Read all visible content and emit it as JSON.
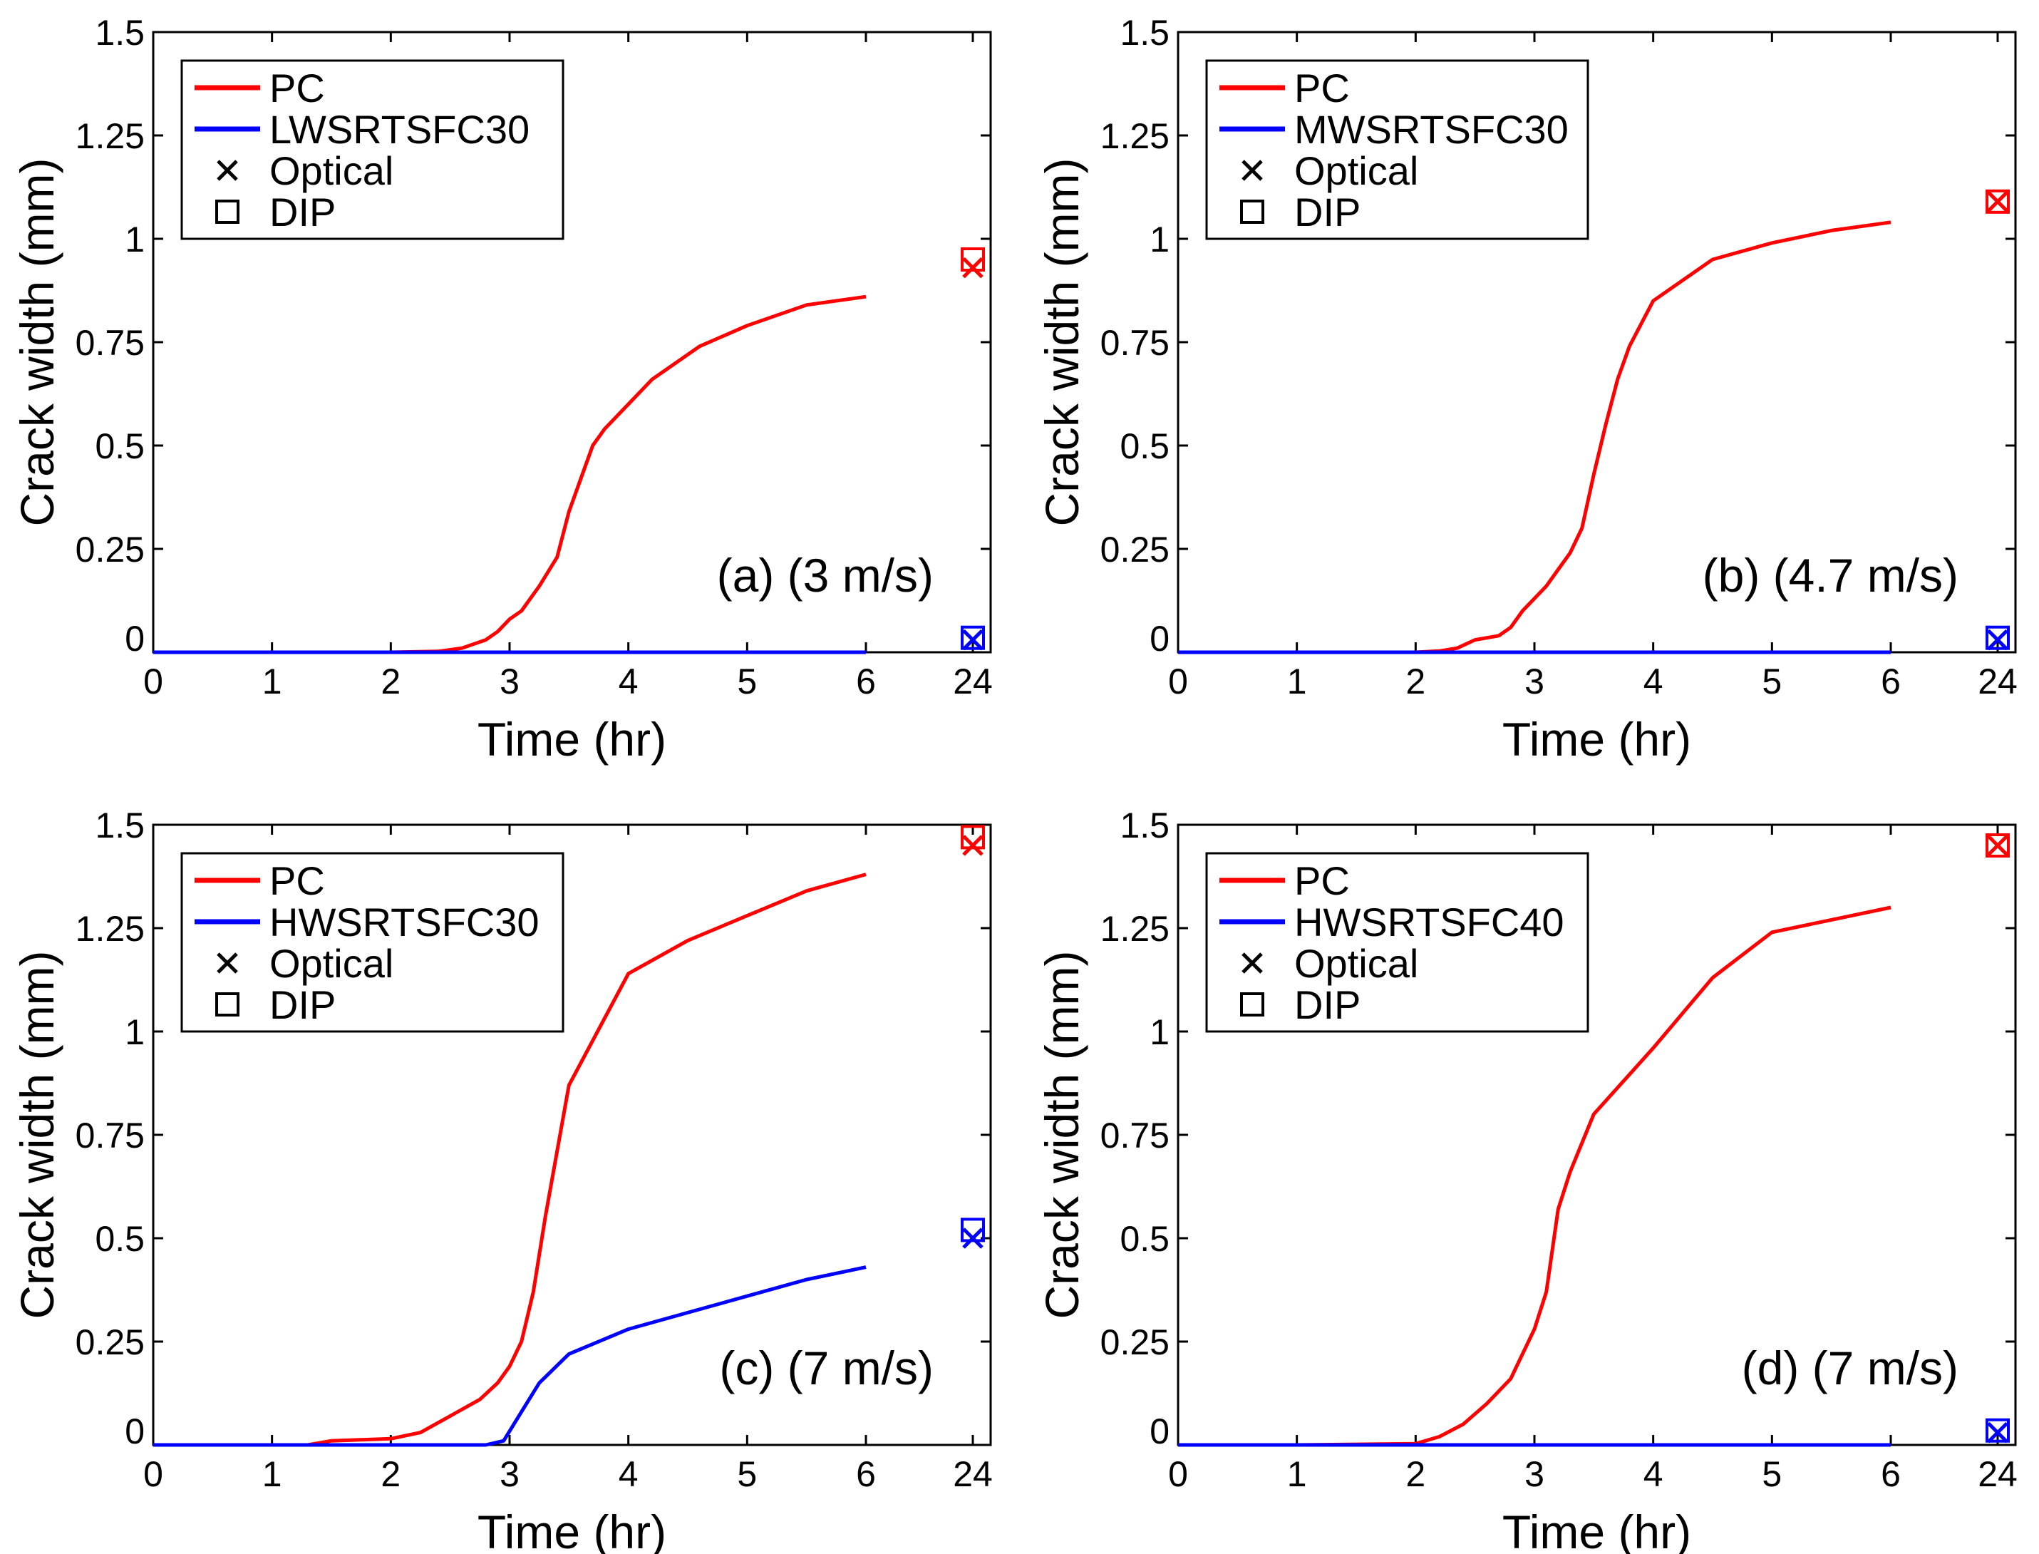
{
  "chart_data": [
    {
      "type": "line",
      "panel": "a",
      "annotation": "(a) (3 m/s)",
      "xlabel": "Time (hr)",
      "ylabel": "Crack width (mm)",
      "ylim": [
        0,
        1.5
      ],
      "x_ticks": [
        "0",
        "1",
        "2",
        "3",
        "4",
        "5",
        "6",
        "24"
      ],
      "y_ticks": [
        "0",
        "0.25",
        "0.5",
        "0.75",
        "1",
        "1.25",
        "1.5"
      ],
      "grid": false,
      "legend": {
        "position": "top-left",
        "entries": [
          {
            "label": "PC",
            "kind": "line",
            "color": "#ff0000"
          },
          {
            "label": "LWSRTSFC30",
            "kind": "line",
            "color": "#0000ff"
          },
          {
            "label": "Optical",
            "kind": "x-marker",
            "color": "#000000"
          },
          {
            "label": "DIP",
            "kind": "square-marker",
            "color": "#000000"
          }
        ]
      },
      "series": [
        {
          "name": "PC",
          "color": "#ff0000",
          "x": [
            0,
            1,
            2,
            2.4,
            2.6,
            2.8,
            2.9,
            3.0,
            3.1,
            3.25,
            3.4,
            3.5,
            3.6,
            3.7,
            3.8,
            4.0,
            4.2,
            4.6,
            5.0,
            5.5,
            6.0
          ],
          "y": [
            0,
            0,
            0,
            0.002,
            0.01,
            0.03,
            0.05,
            0.08,
            0.1,
            0.16,
            0.23,
            0.34,
            0.42,
            0.5,
            0.54,
            0.6,
            0.66,
            0.74,
            0.79,
            0.84,
            0.86
          ]
        },
        {
          "name": "LWSRTSFC30",
          "color": "#0000ff",
          "x": [
            0,
            6
          ],
          "y": [
            0,
            0
          ]
        }
      ],
      "markers_24h": [
        {
          "series": "PC",
          "color": "#ff0000",
          "optical": 0.93,
          "dip": 0.95
        },
        {
          "series": "LWSRTSFC30",
          "color": "#0000ff",
          "optical": 0.03,
          "dip": 0.035
        }
      ]
    },
    {
      "type": "line",
      "panel": "b",
      "annotation": "(b) (4.7 m/s)",
      "xlabel": "Time (hr)",
      "ylabel": "Crack width (mm)",
      "ylim": [
        0,
        1.5
      ],
      "x_ticks": [
        "0",
        "1",
        "2",
        "3",
        "4",
        "5",
        "6",
        "24"
      ],
      "y_ticks": [
        "0",
        "0.25",
        "0.5",
        "0.75",
        "1",
        "1.25",
        "1.5"
      ],
      "grid": false,
      "legend": {
        "position": "top-left",
        "entries": [
          {
            "label": "PC",
            "kind": "line",
            "color": "#ff0000"
          },
          {
            "label": "MWSRTSFC30",
            "kind": "line",
            "color": "#0000ff"
          },
          {
            "label": "Optical",
            "kind": "x-marker",
            "color": "#000000"
          },
          {
            "label": "DIP",
            "kind": "square-marker",
            "color": "#000000"
          }
        ]
      },
      "series": [
        {
          "name": "PC",
          "color": "#ff0000",
          "x": [
            0,
            1,
            2,
            2.2,
            2.35,
            2.5,
            2.7,
            2.8,
            2.9,
            3.0,
            3.1,
            3.2,
            3.3,
            3.4,
            3.5,
            3.6,
            3.7,
            3.8,
            4.0,
            4.5,
            5.0,
            5.5,
            6.0
          ],
          "y": [
            0,
            0,
            0,
            0.003,
            0.01,
            0.03,
            0.04,
            0.06,
            0.1,
            0.13,
            0.16,
            0.2,
            0.24,
            0.3,
            0.43,
            0.55,
            0.66,
            0.74,
            0.85,
            0.95,
            0.99,
            1.02,
            1.04
          ]
        },
        {
          "name": "MWSRTSFC30",
          "color": "#0000ff",
          "x": [
            0,
            6
          ],
          "y": [
            0,
            0
          ]
        }
      ],
      "markers_24h": [
        {
          "series": "PC",
          "color": "#ff0000",
          "optical": 1.09,
          "dip": 1.09
        },
        {
          "series": "MWSRTSFC30",
          "color": "#0000ff",
          "optical": 0.03,
          "dip": 0.035
        }
      ]
    },
    {
      "type": "line",
      "panel": "c",
      "annotation": "(c) (7 m/s)",
      "xlabel": "Time (hr)",
      "ylabel": "Crack width (mm)",
      "ylim": [
        0,
        1.5
      ],
      "x_ticks": [
        "0",
        "1",
        "2",
        "3",
        "4",
        "5",
        "6",
        "24"
      ],
      "y_ticks": [
        "0",
        "0.25",
        "0.5",
        "0.75",
        "1",
        "1.25",
        "1.5"
      ],
      "grid": false,
      "legend": {
        "position": "top-left",
        "entries": [
          {
            "label": "PC",
            "kind": "line",
            "color": "#ff0000"
          },
          {
            "label": "HWSRTSFC30",
            "kind": "line",
            "color": "#0000ff"
          },
          {
            "label": "Optical",
            "kind": "x-marker",
            "color": "#000000"
          },
          {
            "label": "DIP",
            "kind": "square-marker",
            "color": "#000000"
          }
        ]
      },
      "series": [
        {
          "name": "PC",
          "color": "#ff0000",
          "x": [
            0,
            1,
            1.3,
            1.5,
            2.0,
            2.25,
            2.5,
            2.75,
            2.9,
            3.0,
            3.1,
            3.2,
            3.3,
            3.5,
            4.0,
            4.5,
            5.0,
            5.5,
            6.0
          ],
          "y": [
            0,
            0,
            0,
            0.01,
            0.015,
            0.03,
            0.07,
            0.11,
            0.15,
            0.19,
            0.25,
            0.37,
            0.55,
            0.87,
            1.14,
            1.22,
            1.28,
            1.34,
            1.38
          ]
        },
        {
          "name": "HWSRTSFC30",
          "color": "#0000ff",
          "x": [
            0,
            2.8,
            2.95,
            3.1,
            3.25,
            3.5,
            4.0,
            4.5,
            5.0,
            5.5,
            6.0
          ],
          "y": [
            0,
            0,
            0.01,
            0.08,
            0.15,
            0.22,
            0.28,
            0.32,
            0.36,
            0.4,
            0.43
          ]
        }
      ],
      "markers_24h": [
        {
          "series": "PC",
          "color": "#ff0000",
          "optical": 1.45,
          "dip": 1.47
        },
        {
          "series": "HWSRTSFC30",
          "color": "#0000ff",
          "optical": 0.5,
          "dip": 0.52
        }
      ]
    },
    {
      "type": "line",
      "panel": "d",
      "annotation": "(d) (7 m/s)",
      "xlabel": "Time (hr)",
      "ylabel": "Crack width (mm)",
      "ylim": [
        0,
        1.5
      ],
      "x_ticks": [
        "0",
        "1",
        "2",
        "3",
        "4",
        "5",
        "6",
        "24"
      ],
      "y_ticks": [
        "0",
        "0.25",
        "0.5",
        "0.75",
        "1",
        "1.25",
        "1.5"
      ],
      "grid": false,
      "legend": {
        "position": "top-left",
        "entries": [
          {
            "label": "PC",
            "kind": "line",
            "color": "#ff0000"
          },
          {
            "label": "HWSRTSFC40",
            "kind": "line",
            "color": "#0000ff"
          },
          {
            "label": "Optical",
            "kind": "x-marker",
            "color": "#000000"
          },
          {
            "label": "DIP",
            "kind": "square-marker",
            "color": "#000000"
          }
        ]
      },
      "series": [
        {
          "name": "PC",
          "color": "#ff0000",
          "x": [
            0,
            1,
            2,
            2.2,
            2.4,
            2.6,
            2.8,
            2.9,
            3.0,
            3.1,
            3.2,
            3.3,
            3.5,
            4.0,
            4.5,
            5.0,
            5.5,
            6.0
          ],
          "y": [
            0,
            0,
            0.003,
            0.02,
            0.05,
            0.1,
            0.16,
            0.22,
            0.28,
            0.37,
            0.57,
            0.66,
            0.8,
            0.96,
            1.13,
            1.24,
            1.27,
            1.3
          ]
        },
        {
          "name": "HWSRTSFC40",
          "color": "#0000ff",
          "x": [
            0,
            6
          ],
          "y": [
            0,
            0
          ]
        }
      ],
      "markers_24h": [
        {
          "series": "PC",
          "color": "#ff0000",
          "optical": 1.45,
          "dip": 1.45
        },
        {
          "series": "HWSRTSFC40",
          "color": "#0000ff",
          "optical": 0.03,
          "dip": 0.035
        }
      ]
    }
  ]
}
